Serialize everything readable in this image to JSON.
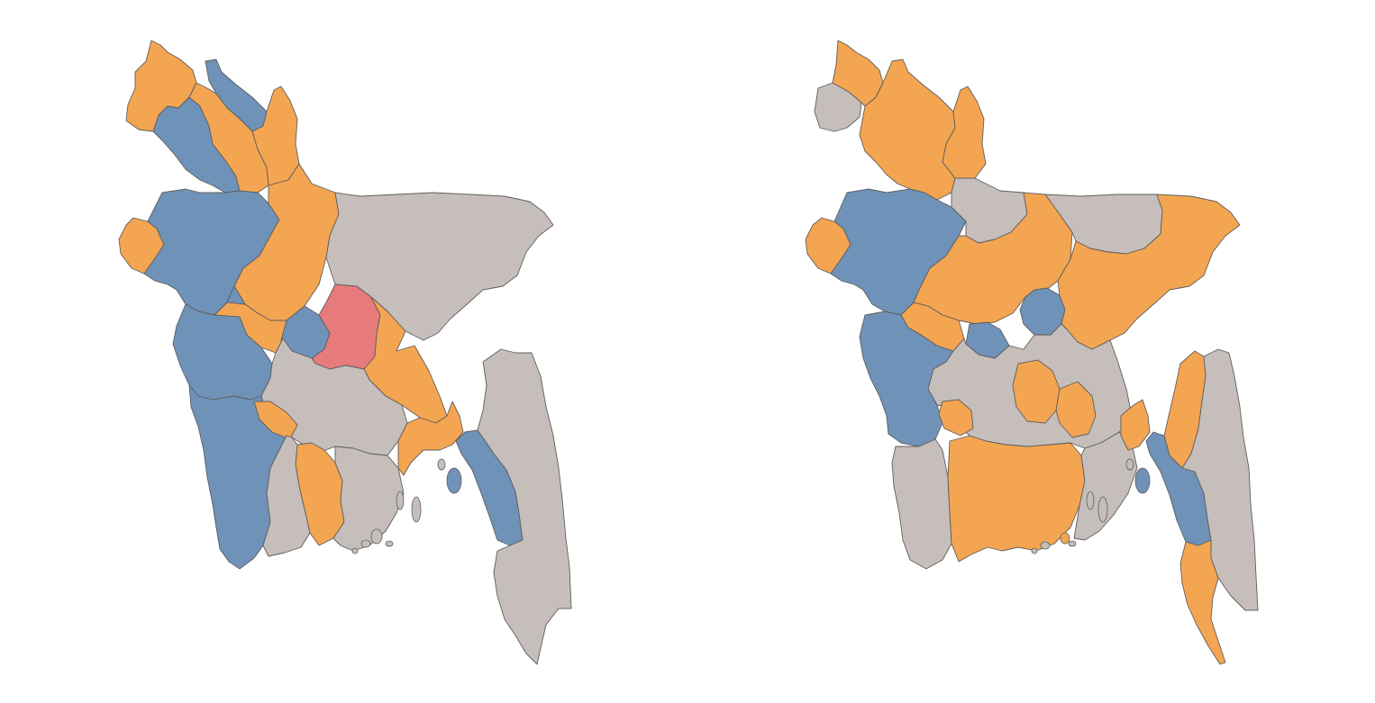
{
  "colors": {
    "blue": "#6f92b8",
    "orange": "#f4a551",
    "grey": "#c6bebb",
    "red": "#e77a7a",
    "border": "#5e5e5e",
    "background": "#ffffff"
  },
  "maps": [
    {
      "id": "left",
      "regions": [
        {
          "name": "northwest-top",
          "category": "orange"
        },
        {
          "name": "northwest-strip",
          "category": "blue"
        },
        {
          "name": "north-west-band",
          "category": "blue"
        },
        {
          "name": "north-central-band",
          "category": "orange"
        },
        {
          "name": "north-east-band",
          "category": "orange"
        },
        {
          "name": "west-bulge",
          "category": "orange"
        },
        {
          "name": "west-core",
          "category": "blue"
        },
        {
          "name": "north-middle",
          "category": "orange"
        },
        {
          "name": "northeast-large",
          "category": "grey"
        },
        {
          "name": "center-orange",
          "category": "orange"
        },
        {
          "name": "center-blue",
          "category": "blue"
        },
        {
          "name": "center-red",
          "category": "red"
        },
        {
          "name": "center-east-orange",
          "category": "orange"
        },
        {
          "name": "southwest-blue",
          "category": "blue"
        },
        {
          "name": "south-middle-grey",
          "category": "grey"
        },
        {
          "name": "south-orange-fingers",
          "category": "orange"
        },
        {
          "name": "south-east-grey",
          "category": "grey"
        },
        {
          "name": "coastal-orange",
          "category": "orange"
        },
        {
          "name": "chittagong-blue",
          "category": "blue"
        },
        {
          "name": "southeast-grey",
          "category": "grey"
        }
      ]
    },
    {
      "id": "right",
      "regions": [
        {
          "name": "northwest-top-grey",
          "category": "grey"
        },
        {
          "name": "north-orange",
          "category": "orange"
        },
        {
          "name": "west-blue",
          "category": "blue"
        },
        {
          "name": "west-bulge",
          "category": "orange"
        },
        {
          "name": "north-middle-grey",
          "category": "grey"
        },
        {
          "name": "center-orange",
          "category": "orange"
        },
        {
          "name": "center-blue",
          "category": "blue"
        },
        {
          "name": "northeast-orange",
          "category": "orange"
        },
        {
          "name": "northeast-grey",
          "category": "grey"
        },
        {
          "name": "center-grey",
          "category": "grey"
        },
        {
          "name": "southwest-blue",
          "category": "blue"
        },
        {
          "name": "south-grey",
          "category": "grey"
        },
        {
          "name": "south-orange",
          "category": "orange"
        },
        {
          "name": "chittagong-blue",
          "category": "blue"
        },
        {
          "name": "east-orange-strip",
          "category": "orange"
        },
        {
          "name": "southeast-grey",
          "category": "grey"
        },
        {
          "name": "far-south-orange",
          "category": "orange"
        }
      ]
    }
  ]
}
